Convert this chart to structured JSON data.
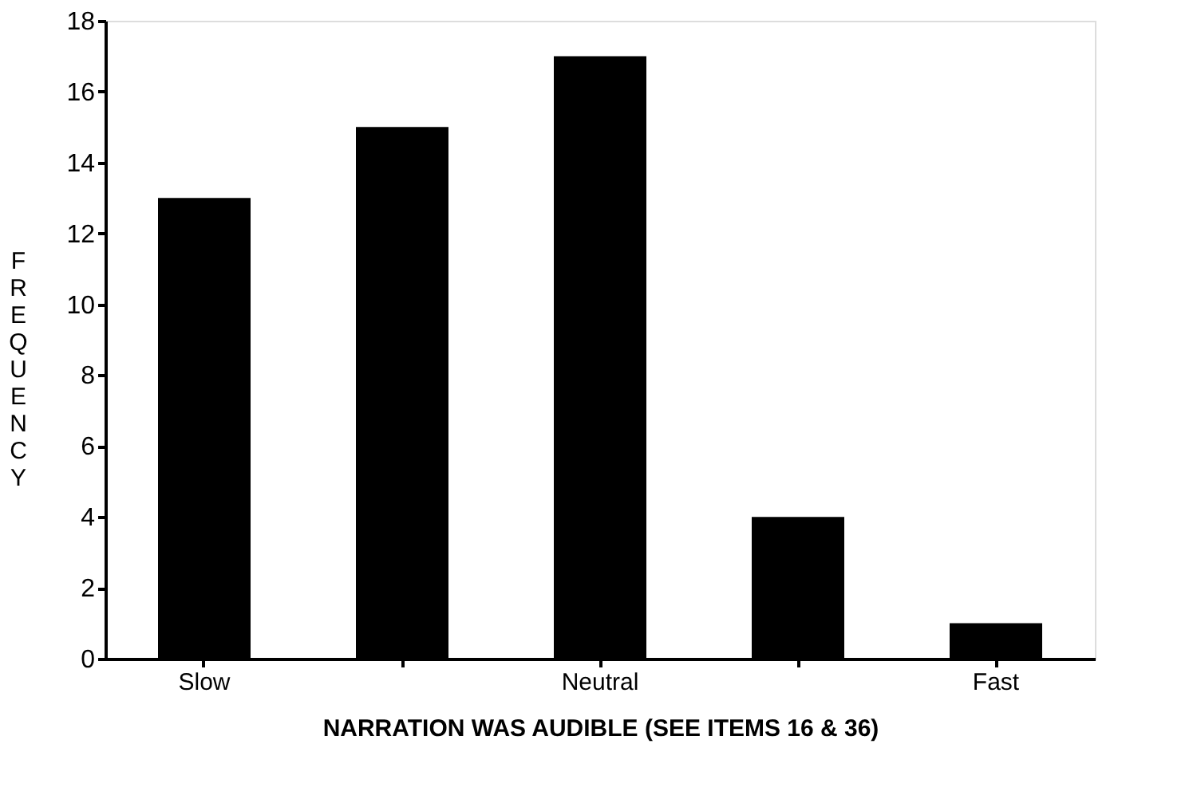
{
  "chart_data": {
    "type": "bar",
    "categories": [
      "Slow",
      null,
      "Neutral",
      null,
      "Fast"
    ],
    "values": [
      13,
      15,
      17,
      4,
      1
    ],
    "color": "#000000",
    "xlabel": "NARRATION WAS AUDIBLE  (SEE ITEMS 16 & 36)",
    "ylabel": "FREQUENCY",
    "ylim": [
      0,
      18
    ],
    "yticks": [
      0,
      2,
      4,
      6,
      8,
      10,
      12,
      14,
      16,
      18
    ],
    "grid": false
  }
}
